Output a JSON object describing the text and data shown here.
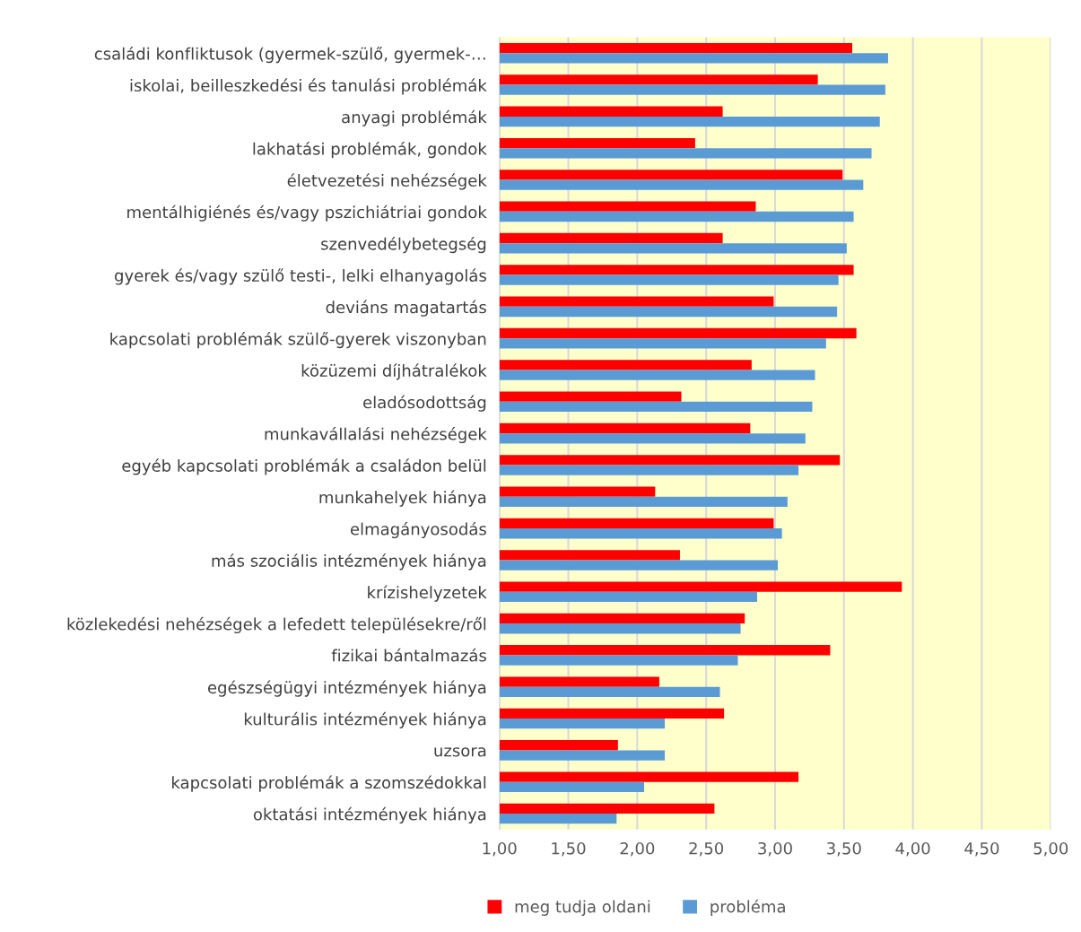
{
  "chart_data": {
    "type": "bar",
    "orientation": "horizontal",
    "categories": [
      "családi konfliktusok (gyermek-szülő, gyermek-…",
      "iskolai, beilleszkedési és tanulási problémák",
      "anyagi problémák",
      "lakhatási problémák, gondok",
      "életvezetési nehézségek",
      "mentálhigiénés és/vagy pszichiátriai gondok",
      "szenvedélybetegség",
      "gyerek és/vagy szülő testi-, lelki elhanyagolás",
      "deviáns magatartás",
      "kapcsolati problémák szülő-gyerek viszonyban",
      "közüzemi díjhátralékok",
      "eladósodottság",
      "munkavállalási nehézségek",
      "egyéb kapcsolati problémák a családon belül",
      "munkahelyek hiánya",
      "elmagányosodás",
      "más szociális intézmények hiánya",
      "krízishelyzetek",
      "közlekedési nehézségek a lefedett településekre/ről",
      "fizikai bántalmazás",
      "egészségügyi intézmények hiánya",
      "kulturális intézmények hiánya",
      "uzsora",
      "kapcsolati problémák a szomszédokkal",
      "oktatási intézmények hiánya"
    ],
    "series": [
      {
        "name": "meg tudja oldani",
        "color": "#ff0000",
        "values": [
          3.56,
          3.31,
          2.62,
          2.42,
          3.49,
          2.86,
          2.62,
          3.57,
          2.99,
          3.59,
          2.83,
          2.32,
          2.82,
          3.47,
          2.13,
          2.99,
          2.31,
          3.92,
          2.78,
          3.4,
          2.16,
          2.63,
          1.86,
          3.17,
          2.56
        ]
      },
      {
        "name": "probléma",
        "color": "#5b9bd5",
        "values": [
          3.82,
          3.8,
          3.76,
          3.7,
          3.64,
          3.57,
          3.52,
          3.46,
          3.45,
          3.37,
          3.29,
          3.27,
          3.22,
          3.17,
          3.09,
          3.05,
          3.02,
          2.87,
          2.75,
          2.73,
          2.6,
          2.2,
          2.2,
          2.05,
          1.85
        ]
      }
    ],
    "xlim": [
      1,
      5
    ],
    "xticks": [
      {
        "value": 1,
        "label": "1,00"
      },
      {
        "value": 1.5,
        "label": "1,50"
      },
      {
        "value": 2,
        "label": "2,00"
      },
      {
        "value": 2.5,
        "label": "2,50"
      },
      {
        "value": 3,
        "label": "3,00"
      },
      {
        "value": 3.5,
        "label": "3,50"
      },
      {
        "value": 4,
        "label": "4,00"
      },
      {
        "value": 4.5,
        "label": "4,50"
      },
      {
        "value": 5,
        "label": "5,00"
      }
    ],
    "grid": "x",
    "legend": "bottom"
  }
}
